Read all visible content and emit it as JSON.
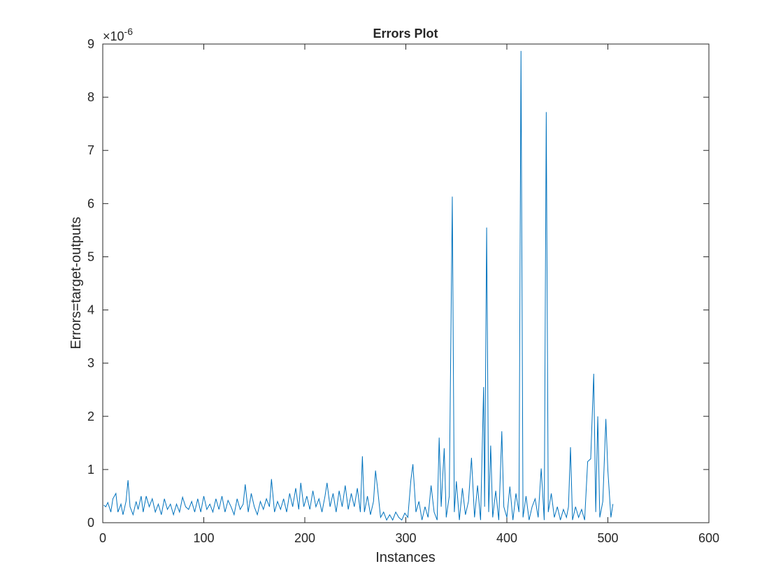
{
  "chart_data": {
    "type": "line",
    "title": "Errors Plot",
    "xlabel": "Instances",
    "ylabel": "Errors=target-outputs",
    "y_exponent_base": "×10",
    "y_exponent": "-6",
    "xlim": [
      0,
      600
    ],
    "xticks": [
      0,
      100,
      200,
      300,
      400,
      500,
      600
    ],
    "ylim": [
      0,
      9
    ],
    "yticks": [
      0,
      1,
      2,
      3,
      4,
      5,
      6,
      7,
      8,
      9
    ],
    "grid": false,
    "x": [
      1,
      3,
      5,
      8,
      10,
      13,
      15,
      18,
      20,
      23,
      25,
      27,
      30,
      33,
      35,
      38,
      40,
      43,
      46,
      49,
      52,
      55,
      58,
      61,
      64,
      67,
      70,
      73,
      76,
      79,
      82,
      85,
      88,
      91,
      94,
      97,
      100,
      103,
      106,
      109,
      112,
      115,
      118,
      121,
      124,
      127,
      130,
      133,
      136,
      139,
      141,
      144,
      147,
      150,
      153,
      156,
      159,
      162,
      165,
      167,
      170,
      173,
      176,
      179,
      182,
      185,
      188,
      191,
      194,
      196,
      199,
      202,
      205,
      208,
      211,
      214,
      217,
      220,
      222,
      225,
      228,
      231,
      234,
      237,
      240,
      243,
      246,
      249,
      252,
      255,
      257,
      259,
      262,
      265,
      268,
      270,
      272,
      275,
      278,
      281,
      284,
      287,
      290,
      293,
      296,
      299,
      302,
      305,
      307,
      310,
      313,
      316,
      319,
      322,
      325,
      328,
      331,
      333,
      335,
      338,
      340,
      343,
      346,
      348,
      350,
      353,
      356,
      359,
      362,
      365,
      368,
      371,
      374,
      377,
      378,
      380,
      382,
      384,
      386,
      389,
      392,
      395,
      397,
      400,
      403,
      406,
      409,
      412,
      414,
      416,
      419,
      422,
      425,
      428,
      431,
      434,
      437,
      439,
      441,
      444,
      447,
      450,
      453,
      456,
      459,
      461,
      463,
      465,
      468,
      471,
      474,
      477,
      480,
      483,
      486,
      488,
      490,
      492,
      495,
      498,
      500,
      503,
      505
    ],
    "series": [
      {
        "color": "#0072bd",
        "values": [
          0.33,
          0.3,
          0.38,
          0.2,
          0.45,
          0.55,
          0.2,
          0.35,
          0.15,
          0.4,
          0.8,
          0.3,
          0.15,
          0.4,
          0.25,
          0.5,
          0.2,
          0.5,
          0.3,
          0.45,
          0.2,
          0.35,
          0.15,
          0.45,
          0.25,
          0.35,
          0.15,
          0.35,
          0.2,
          0.48,
          0.3,
          0.25,
          0.4,
          0.2,
          0.45,
          0.2,
          0.5,
          0.25,
          0.35,
          0.2,
          0.45,
          0.25,
          0.5,
          0.2,
          0.42,
          0.3,
          0.15,
          0.45,
          0.25,
          0.35,
          0.72,
          0.2,
          0.55,
          0.3,
          0.15,
          0.4,
          0.25,
          0.45,
          0.3,
          0.82,
          0.2,
          0.4,
          0.25,
          0.45,
          0.2,
          0.55,
          0.3,
          0.65,
          0.25,
          0.75,
          0.3,
          0.5,
          0.25,
          0.6,
          0.3,
          0.45,
          0.2,
          0.5,
          0.75,
          0.3,
          0.55,
          0.2,
          0.6,
          0.3,
          0.7,
          0.25,
          0.55,
          0.3,
          0.65,
          0.2,
          1.25,
          0.2,
          0.5,
          0.15,
          0.4,
          0.98,
          0.65,
          0.1,
          0.2,
          0.05,
          0.15,
          0.05,
          0.2,
          0.1,
          0.05,
          0.18,
          0.1,
          0.8,
          1.1,
          0.2,
          0.4,
          0.05,
          0.3,
          0.1,
          0.7,
          0.2,
          0.05,
          1.6,
          0.3,
          1.4,
          0.1,
          0.5,
          6.13,
          0.2,
          0.78,
          0.05,
          0.65,
          0.15,
          0.4,
          1.22,
          0.1,
          0.7,
          0.05,
          2.55,
          0.3,
          5.55,
          0.2,
          1.45,
          0.1,
          0.6,
          0.05,
          1.72,
          0.3,
          0.1,
          0.68,
          0.05,
          0.55,
          0.2,
          8.87,
          0.1,
          0.5,
          0.05,
          0.3,
          0.45,
          0.1,
          1.02,
          0.05,
          7.72,
          0.2,
          0.55,
          0.1,
          0.3,
          0.05,
          0.25,
          0.1,
          0.3,
          1.42,
          0.05,
          0.3,
          0.1,
          0.25,
          0.05,
          1.15,
          1.2,
          2.8,
          0.2,
          2.0,
          0.1,
          0.4,
          1.95,
          0.98,
          0.1,
          0.35
        ]
      }
    ]
  }
}
